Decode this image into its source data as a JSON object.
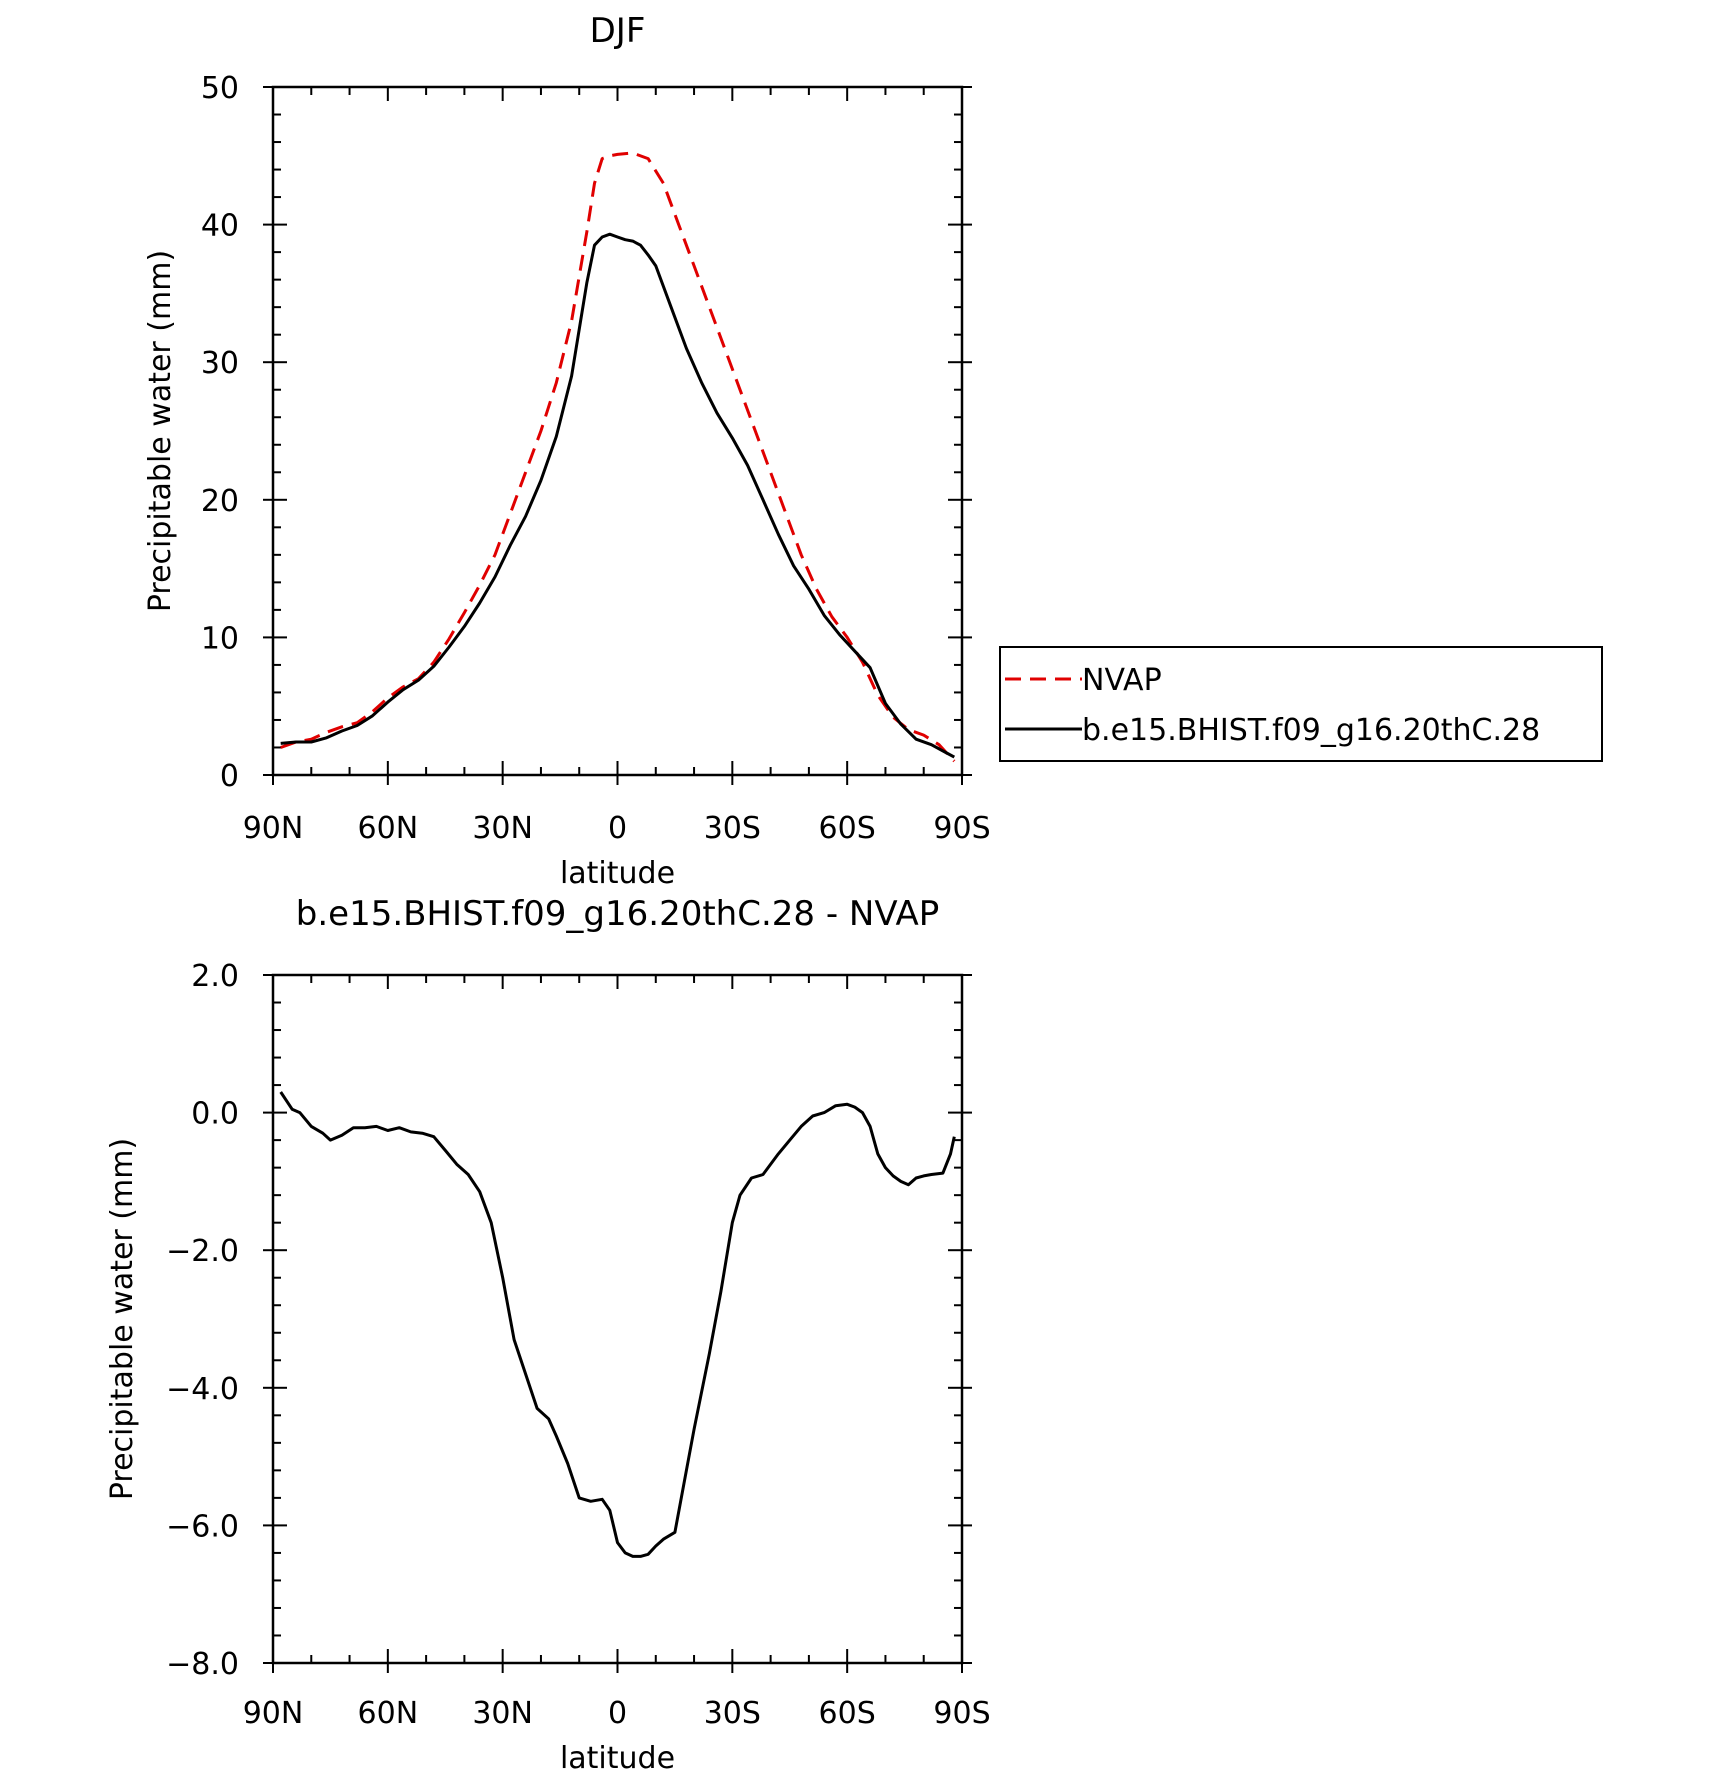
{
  "chart_data": [
    {
      "type": "line",
      "title": "DJF",
      "xlabel": "latitude",
      "ylabel": "Precipitable water (mm)",
      "xlim": [
        -90,
        90
      ],
      "ylim": [
        0,
        50
      ],
      "x_ticks": [
        -90,
        -60,
        -30,
        0,
        30,
        60,
        90
      ],
      "x_tick_labels": [
        "90N",
        "60N",
        "30N",
        "0",
        "30S",
        "60S",
        "90S"
      ],
      "y_ticks": [
        0,
        10,
        20,
        30,
        40,
        50
      ],
      "y_tick_labels": [
        "0",
        "10",
        "20",
        "30",
        "40",
        "50"
      ],
      "legend_position": "right",
      "series": [
        {
          "name": "NVAP",
          "color": "#e00000",
          "dash": "dashed",
          "x": [
            -88,
            -84,
            -80,
            -76,
            -72,
            -68,
            -64,
            -60,
            -56,
            -52,
            -48,
            -44,
            -40,
            -36,
            -32,
            -28,
            -24,
            -20,
            -16,
            -12,
            -8,
            -6,
            -4,
            -2,
            0,
            4,
            8,
            12,
            16,
            20,
            24,
            28,
            32,
            36,
            40,
            44,
            48,
            52,
            56,
            60,
            64,
            68,
            72,
            76,
            80,
            84,
            88
          ],
          "values": [
            2.0,
            2.4,
            2.6,
            3.1,
            3.5,
            3.8,
            4.6,
            5.6,
            6.4,
            7.0,
            8.2,
            9.9,
            11.8,
            13.8,
            16.0,
            19.0,
            22.0,
            25.0,
            28.5,
            33.0,
            39.5,
            43.0,
            44.8,
            45.0,
            45.1,
            45.2,
            44.8,
            43.0,
            40.0,
            37.0,
            34.0,
            31.0,
            28.0,
            25.0,
            22.0,
            19.0,
            16.0,
            13.5,
            11.5,
            10.0,
            8.2,
            5.8,
            4.2,
            3.3,
            2.9,
            2.2,
            1.0
          ]
        },
        {
          "name": "b.e15.BHIST.f09_g16.20thC.28",
          "color": "#000000",
          "dash": "solid",
          "x": [
            -88,
            -84,
            -80,
            -76,
            -72,
            -68,
            -64,
            -60,
            -56,
            -52,
            -48,
            -44,
            -40,
            -36,
            -32,
            -28,
            -24,
            -20,
            -16,
            -12,
            -8,
            -6,
            -4,
            -2,
            0,
            2,
            4,
            6,
            8,
            10,
            14,
            18,
            22,
            26,
            30,
            34,
            38,
            42,
            46,
            50,
            54,
            58,
            62,
            66,
            70,
            74,
            78,
            82,
            86,
            88
          ],
          "values": [
            2.3,
            2.4,
            2.4,
            2.7,
            3.2,
            3.6,
            4.3,
            5.3,
            6.2,
            6.9,
            7.9,
            9.3,
            10.8,
            12.5,
            14.4,
            16.7,
            18.8,
            21.4,
            24.6,
            29.0,
            35.8,
            38.5,
            39.1,
            39.3,
            39.1,
            38.9,
            38.8,
            38.5,
            37.8,
            37.0,
            34.0,
            31.0,
            28.5,
            26.3,
            24.5,
            22.5,
            20.0,
            17.5,
            15.2,
            13.5,
            11.6,
            10.2,
            9.0,
            7.8,
            5.2,
            3.7,
            2.6,
            2.2,
            1.6,
            1.3
          ]
        }
      ]
    },
    {
      "type": "line",
      "title": "b.e15.BHIST.f09_g16.20thC.28 - NVAP",
      "xlabel": "latitude",
      "ylabel": "Precipitable water (mm)",
      "xlim": [
        -90,
        90
      ],
      "ylim": [
        -8,
        2
      ],
      "x_ticks": [
        -90,
        -60,
        -30,
        0,
        30,
        60,
        90
      ],
      "x_tick_labels": [
        "90N",
        "60N",
        "30N",
        "0",
        "30S",
        "60S",
        "90S"
      ],
      "y_ticks": [
        -8,
        -6,
        -4,
        -2,
        0,
        2
      ],
      "y_tick_labels": [
        "−8.0",
        "−6.0",
        "−4.0",
        "−2.0",
        "0.0",
        "2.0"
      ],
      "series": [
        {
          "color": "#000000",
          "dash": "solid",
          "x": [
            -88,
            -85,
            -83,
            -80,
            -77,
            -75,
            -72,
            -69,
            -66,
            -63,
            -60,
            -57,
            -54,
            -51,
            -48,
            -45,
            -42,
            -39,
            -36,
            -33,
            -30,
            -27,
            -24,
            -21,
            -18,
            -16,
            -13,
            -10,
            -7,
            -4,
            -2,
            0,
            2,
            4,
            6,
            8,
            10,
            12,
            15,
            18,
            20,
            24,
            27,
            30,
            32,
            35,
            38,
            42,
            45,
            48,
            51,
            54,
            57,
            60,
            62,
            64,
            66,
            68,
            70,
            72,
            74,
            76,
            78,
            80,
            82,
            85,
            87,
            88
          ],
          "values": [
            0.3,
            0.05,
            0.0,
            -0.2,
            -0.3,
            -0.4,
            -0.33,
            -0.22,
            -0.22,
            -0.2,
            -0.26,
            -0.22,
            -0.28,
            -0.3,
            -0.35,
            -0.55,
            -0.75,
            -0.9,
            -1.15,
            -1.6,
            -2.4,
            -3.3,
            -3.8,
            -4.3,
            -4.45,
            -4.7,
            -5.1,
            -5.6,
            -5.65,
            -5.62,
            -5.78,
            -6.25,
            -6.4,
            -6.45,
            -6.45,
            -6.42,
            -6.3,
            -6.2,
            -6.1,
            -5.2,
            -4.6,
            -3.5,
            -2.6,
            -1.6,
            -1.2,
            -0.95,
            -0.9,
            -0.6,
            -0.4,
            -0.2,
            -0.05,
            0.0,
            0.1,
            0.12,
            0.08,
            0.0,
            -0.2,
            -0.6,
            -0.8,
            -0.92,
            -1.0,
            -1.05,
            -0.95,
            -0.92,
            -0.9,
            -0.88,
            -0.6,
            -0.35
          ]
        }
      ]
    }
  ]
}
